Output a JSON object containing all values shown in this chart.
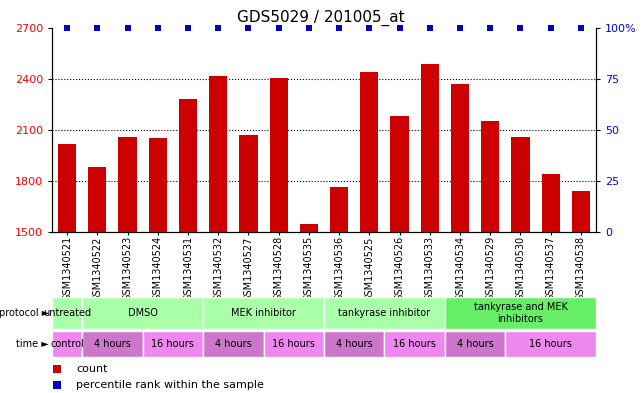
{
  "title": "GDS5029 / 201005_at",
  "samples": [
    "GSM1340521",
    "GSM1340522",
    "GSM1340523",
    "GSM1340524",
    "GSM1340531",
    "GSM1340532",
    "GSM1340527",
    "GSM1340528",
    "GSM1340535",
    "GSM1340536",
    "GSM1340525",
    "GSM1340526",
    "GSM1340533",
    "GSM1340534",
    "GSM1340529",
    "GSM1340530",
    "GSM1340537",
    "GSM1340538"
  ],
  "counts": [
    2020,
    1880,
    2060,
    2050,
    2280,
    2415,
    2070,
    2405,
    1545,
    1765,
    2440,
    2185,
    2490,
    2370,
    2150,
    2060,
    1840,
    1740
  ],
  "percentiles": [
    100,
    100,
    100,
    100,
    100,
    100,
    100,
    100,
    100,
    100,
    100,
    100,
    100,
    100,
    100,
    100,
    100,
    100
  ],
  "ylim_left": [
    1500,
    2700
  ],
  "ylim_right": [
    0,
    100
  ],
  "yticks_left": [
    1500,
    1800,
    2100,
    2400,
    2700
  ],
  "yticks_right": [
    0,
    25,
    50,
    75,
    100
  ],
  "bar_color": "#cc0000",
  "dot_color": "#0000cc",
  "protocol_groups": [
    {
      "label": "untreated",
      "start": 0,
      "end": 1,
      "color": "#aaffaa"
    },
    {
      "label": "DMSO",
      "start": 1,
      "end": 5,
      "color": "#aaffaa"
    },
    {
      "label": "MEK inhibitor",
      "start": 5,
      "end": 9,
      "color": "#aaffaa"
    },
    {
      "label": "tankyrase inhibitor",
      "start": 9,
      "end": 13,
      "color": "#aaffaa"
    },
    {
      "label": "tankyrase and MEK\ninhibitors",
      "start": 13,
      "end": 18,
      "color": "#66ee66"
    }
  ],
  "time_groups": [
    {
      "label": "control",
      "start": 0,
      "end": 1,
      "color": "#ee88ee"
    },
    {
      "label": "4 hours",
      "start": 1,
      "end": 3,
      "color": "#cc77cc"
    },
    {
      "label": "16 hours",
      "start": 3,
      "end": 5,
      "color": "#ee88ee"
    },
    {
      "label": "4 hours",
      "start": 5,
      "end": 7,
      "color": "#cc77cc"
    },
    {
      "label": "16 hours",
      "start": 7,
      "end": 9,
      "color": "#ee88ee"
    },
    {
      "label": "4 hours",
      "start": 9,
      "end": 11,
      "color": "#cc77cc"
    },
    {
      "label": "16 hours",
      "start": 11,
      "end": 13,
      "color": "#ee88ee"
    },
    {
      "label": "4 hours",
      "start": 13,
      "end": 15,
      "color": "#cc77cc"
    },
    {
      "label": "16 hours",
      "start": 15,
      "end": 18,
      "color": "#ee88ee"
    }
  ],
  "legend_count_label": "count",
  "legend_pct_label": "percentile rank within the sample"
}
